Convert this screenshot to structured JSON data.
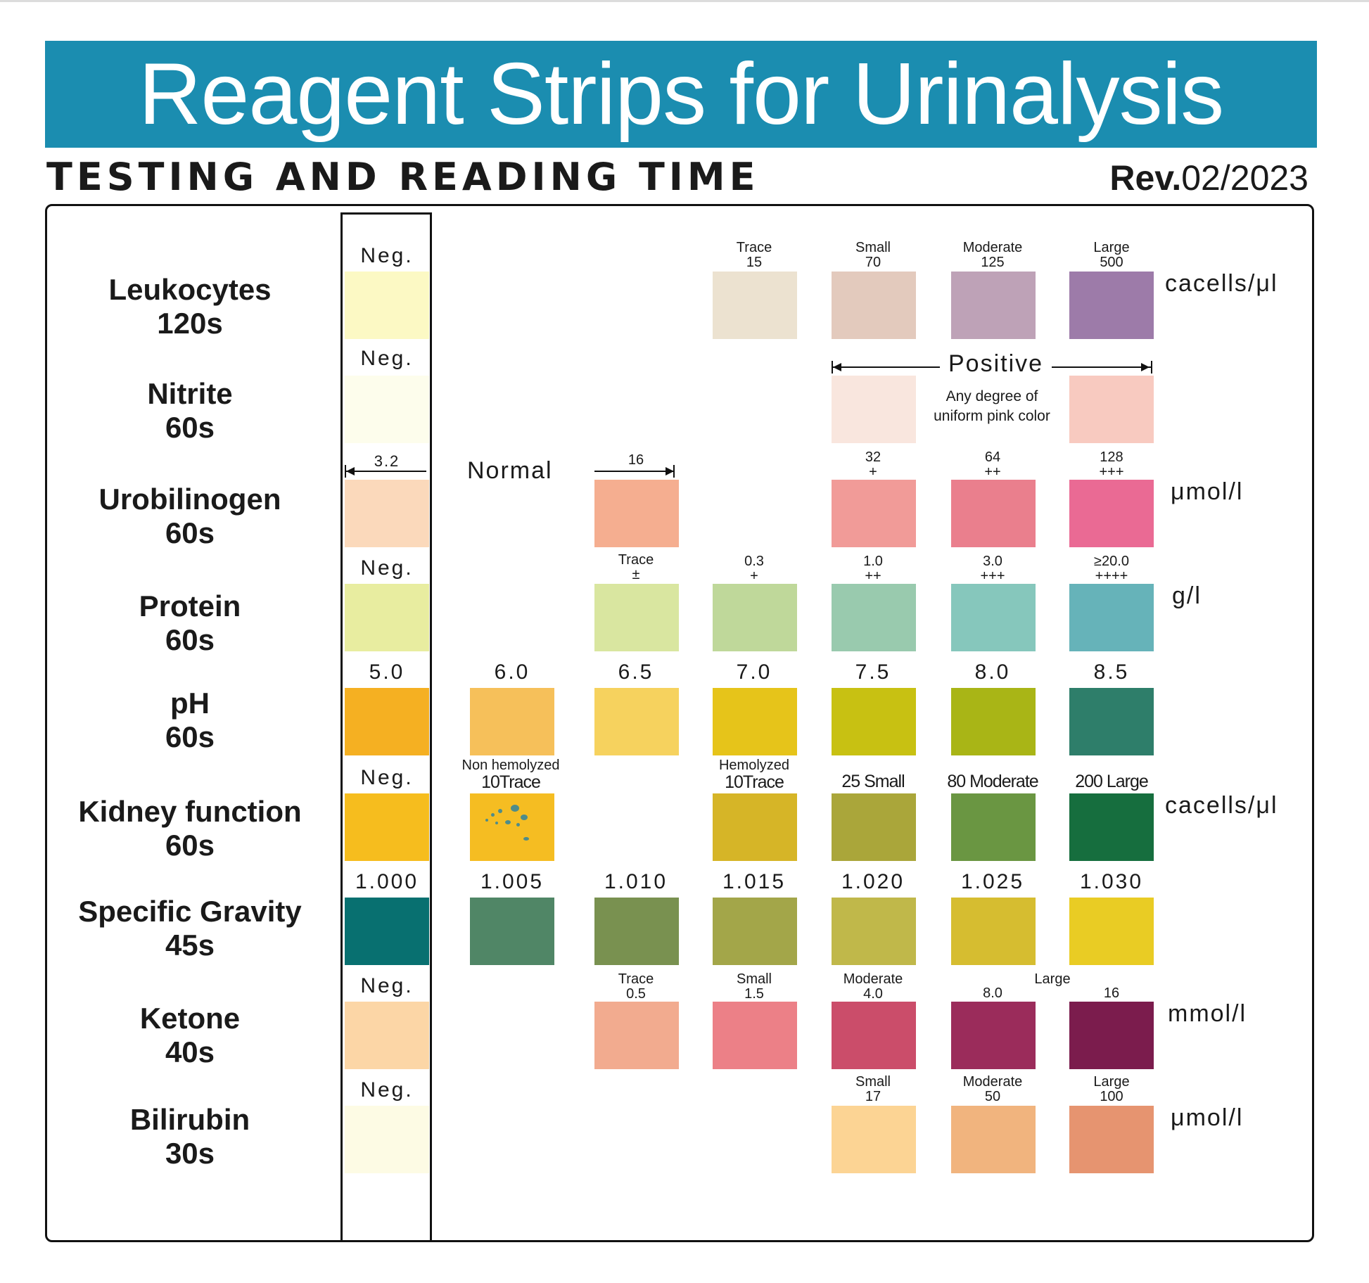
{
  "header": {
    "title": "Reagent Strips for Urinalysis",
    "subtitle": "TESTING AND READING TIME",
    "rev_prefix": "Rev.",
    "rev_date": "02/2023",
    "banner_color": "#1b8db0"
  },
  "rows": [
    {
      "name": "Leukocytes",
      "time": "120s",
      "unit": "cacells/μl",
      "neg": {
        "label": "Neg.",
        "color": "#fcf9c4"
      },
      "levels": [
        {
          "label1": "Trace",
          "label2": "15",
          "color": "#ece2d0"
        },
        {
          "label1": "Small",
          "label2": "70",
          "color": "#e3cabd"
        },
        {
          "label1": "Moderate",
          "label2": "125",
          "color": "#bea2b7"
        },
        {
          "label1": "Large",
          "label2": "500",
          "color": "#9d7ba9"
        }
      ]
    },
    {
      "name": "Nitrite",
      "time": "60s",
      "neg": {
        "label": "Neg.",
        "color": "#fdfdec"
      },
      "positive_label": "Positive",
      "positive_note_1": "Any degree of",
      "positive_note_2": "uniform pink color",
      "levels": [
        {
          "color": "#f9e6de"
        },
        {
          "color": "#f8cac0"
        }
      ]
    },
    {
      "name": "Urobilinogen",
      "time": "60s",
      "unit": "μmol/l",
      "neg": {
        "label": "3.2",
        "color": "#fbd9bb"
      },
      "normal_label": "Normal",
      "levels": [
        {
          "label1": "16",
          "color": "#f5ae90"
        },
        {
          "label1": "32",
          "label2": "+",
          "color": "#f19b98"
        },
        {
          "label1": "64",
          "label2": "++",
          "color": "#ea7f8d"
        },
        {
          "label1": "128",
          "label2": "+++",
          "color": "#ea6a94"
        }
      ]
    },
    {
      "name": "Protein",
      "time": "60s",
      "unit": "g/l",
      "neg": {
        "label": "Neg.",
        "color": "#e8eda0"
      },
      "levels": [
        {
          "label1": "Trace",
          "label2": "±",
          "color": "#d9e6a0"
        },
        {
          "label1": "0.3",
          "label2": "+",
          "color": "#bfd89a"
        },
        {
          "label1": "1.0",
          "label2": "++",
          "color": "#99caae"
        },
        {
          "label1": "3.0",
          "label2": "+++",
          "color": "#86c7bc"
        },
        {
          "label1": "≥20.0",
          "label2": "++++",
          "color": "#66b3b9"
        }
      ]
    },
    {
      "name": "pH",
      "time": "60s",
      "neg": {
        "label": "5.0",
        "color": "#f5b022"
      },
      "levels": [
        {
          "label1": "6.0",
          "color": "#f6c05a"
        },
        {
          "label1": "6.5",
          "color": "#f6d25e"
        },
        {
          "label1": "7.0",
          "color": "#e6c41a"
        },
        {
          "label1": "7.5",
          "color": "#c8c112"
        },
        {
          "label1": "8.0",
          "color": "#a9b516"
        },
        {
          "label1": "8.5",
          "color": "#2e7e6a"
        }
      ]
    },
    {
      "name": "Kidney function",
      "time": "60s",
      "unit": "cacells/μl",
      "neg": {
        "label": "Neg.",
        "color": "#f6bd1e"
      },
      "levels": [
        {
          "label1": "Non hemolyzed",
          "label2": "10Trace",
          "color": "#f5bd22"
        },
        {
          "label1": "Hemolyzed",
          "label2": "10Trace",
          "color": "#d6b527"
        },
        {
          "label1": "25 Small",
          "color": "#aaa63a"
        },
        {
          "label1": "80 Moderate",
          "color": "#6a9642"
        },
        {
          "label1": "200 Large",
          "color": "#166e3e"
        }
      ]
    },
    {
      "name": "Specific Gravity",
      "time": "45s",
      "neg": {
        "label": "1.000",
        "color": "#087070"
      },
      "levels": [
        {
          "label1": "1.005",
          "color": "#508666"
        },
        {
          "label1": "1.010",
          "color": "#799150"
        },
        {
          "label1": "1.015",
          "color": "#a3a649"
        },
        {
          "label1": "1.020",
          "color": "#c0b84a"
        },
        {
          "label1": "1.025",
          "color": "#d6bd30"
        },
        {
          "label1": "1.030",
          "color": "#e9cc24"
        }
      ]
    },
    {
      "name": "Ketone",
      "time": "40s",
      "unit": "mmol/l",
      "neg": {
        "label": "Neg.",
        "color": "#fcd6a6"
      },
      "large_label": "Large",
      "levels": [
        {
          "label1": "Trace",
          "label2": "0.5",
          "color": "#f2ab8f"
        },
        {
          "label1": "Small",
          "label2": "1.5",
          "color": "#ec8087"
        },
        {
          "label1": "Moderate",
          "label2": "4.0",
          "color": "#cb4d6a"
        },
        {
          "label2": "8.0",
          "color": "#9b2c5b"
        },
        {
          "label2": "16",
          "color": "#7b1c4d"
        }
      ]
    },
    {
      "name": "Bilirubin",
      "time": "30s",
      "unit": "μmol/l",
      "neg": {
        "label": "Neg.",
        "color": "#fdfbe4"
      },
      "levels": [
        {
          "label1": "Small",
          "label2": "17",
          "color": "#fcd494"
        },
        {
          "label1": "Moderate",
          "label2": "50",
          "color": "#f1b47e"
        },
        {
          "label1": "Large",
          "label2": "100",
          "color": "#e69470"
        }
      ]
    }
  ]
}
